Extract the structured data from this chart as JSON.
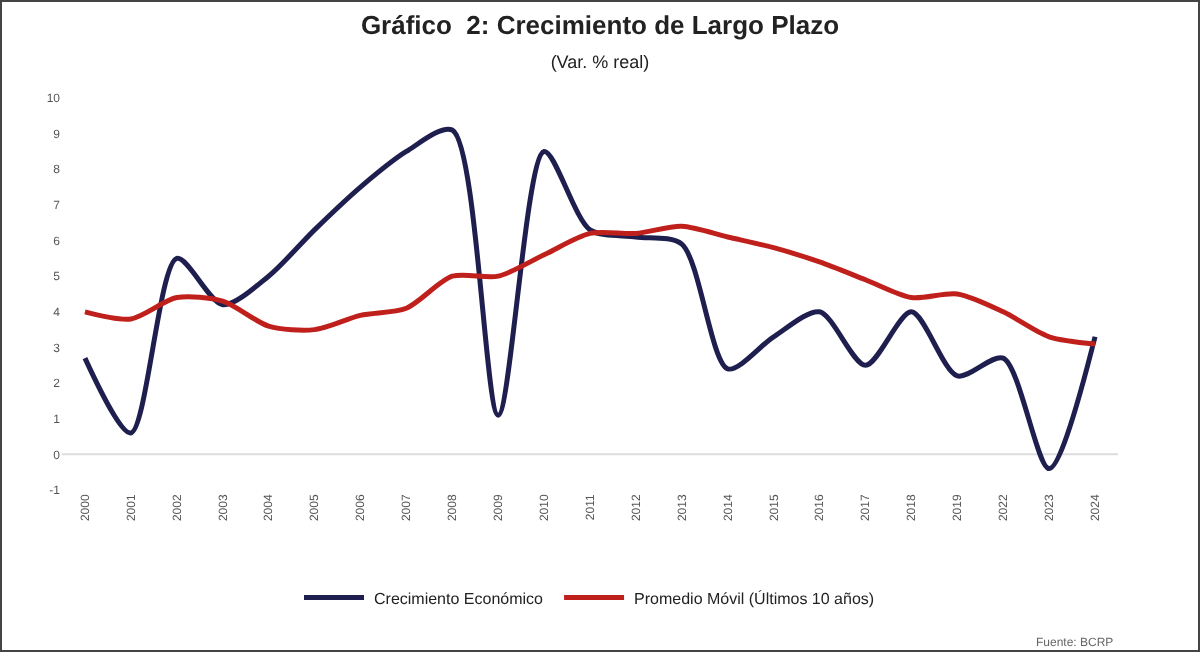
{
  "chart_data": {
    "type": "line",
    "title": "Gráfico  2: Crecimiento de Largo Plazo",
    "subtitle": "(Var. % real)",
    "categories": [
      "2000",
      "2001",
      "2002",
      "2003",
      "2004",
      "2005",
      "2006",
      "2007",
      "2008",
      "2009",
      "2010",
      "2011",
      "2012",
      "2013",
      "2014",
      "2015",
      "2016",
      "2017",
      "2018",
      "2019",
      "2022",
      "2023",
      "2024"
    ],
    "series": [
      {
        "name": "Crecimiento Económico",
        "color": "#1f1f4f",
        "values": [
          2.7,
          0.6,
          5.5,
          4.2,
          5.0,
          6.3,
          7.5,
          8.5,
          9.1,
          1.1,
          8.5,
          6.3,
          6.1,
          5.9,
          2.4,
          3.3,
          4.0,
          2.5,
          4.0,
          2.2,
          2.7,
          -0.4,
          3.3
        ]
      },
      {
        "name": "Promedio Móvil (Últimos 10 años)",
        "color": "#c0201c",
        "values": [
          4.0,
          3.8,
          4.4,
          4.3,
          3.6,
          3.5,
          3.9,
          4.1,
          5.0,
          5.0,
          5.6,
          6.2,
          6.2,
          6.4,
          6.1,
          5.8,
          5.4,
          4.9,
          4.4,
          4.5,
          4.0,
          3.3,
          3.1
        ]
      }
    ],
    "ylim": [
      -1,
      10
    ],
    "yticks": [
      -1,
      0,
      1,
      2,
      3,
      4,
      5,
      6,
      7,
      8,
      9,
      10
    ],
    "grid": false,
    "ref_lines": [
      {
        "axis": "y",
        "value": 0,
        "color": "#dddddd"
      }
    ],
    "legend": "bottom",
    "marker": "none",
    "line_style": "solid",
    "annotations": [
      "Fuente: BCRP"
    ]
  }
}
